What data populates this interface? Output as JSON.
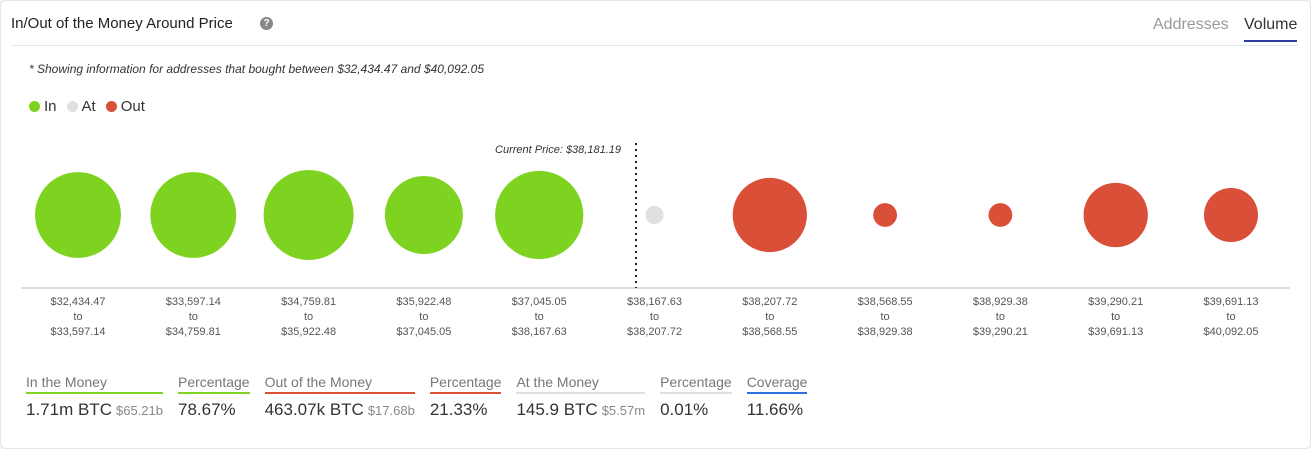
{
  "header": {
    "title": "In/Out of the Money Around Price",
    "help_icon": "question-circle-icon",
    "tabs": [
      {
        "label": "Addresses",
        "active": false
      },
      {
        "label": "Volume",
        "active": true
      }
    ]
  },
  "note": "* Showing information for addresses that bought between $32,434.47 and $40,092.05",
  "legend": [
    {
      "label": "In",
      "color": "#7ed321"
    },
    {
      "label": "At",
      "color": "#e0e0e2"
    },
    {
      "label": "Out",
      "color": "#d94f38"
    }
  ],
  "chart_data": {
    "type": "bubble",
    "current_price_label": "Current Price: $38,181.19",
    "categories": [
      {
        "from": "$32,434.47",
        "to": "$33,597.14",
        "status": "In",
        "relative_volume": 0.91
      },
      {
        "from": "$33,597.14",
        "to": "$34,759.81",
        "status": "In",
        "relative_volume": 0.91
      },
      {
        "from": "$34,759.81",
        "to": "$35,922.48",
        "status": "In",
        "relative_volume": 1.0
      },
      {
        "from": "$35,922.48",
        "to": "$37,045.05",
        "status": "In",
        "relative_volume": 0.75
      },
      {
        "from": "$37,045.05",
        "to": "$38,167.63",
        "status": "In",
        "relative_volume": 0.96
      },
      {
        "from": "$38,167.63",
        "to": "$38,207.72",
        "status": "At",
        "relative_volume": 0.04
      },
      {
        "from": "$38,207.72",
        "to": "$38,568.55",
        "status": "Out",
        "relative_volume": 0.68
      },
      {
        "from": "$38,568.55",
        "to": "$38,929.38",
        "status": "Out",
        "relative_volume": 0.07
      },
      {
        "from": "$38,929.38",
        "to": "$39,290.21",
        "status": "Out",
        "relative_volume": 0.07
      },
      {
        "from": "$39,290.21",
        "to": "$39,691.13",
        "status": "Out",
        "relative_volume": 0.51
      },
      {
        "from": "$39,691.13",
        "to": "$40,092.05",
        "status": "Out",
        "relative_volume": 0.36
      }
    ],
    "to_word": "to"
  },
  "stats": [
    {
      "label": "In the Money",
      "value": "1.71m BTC",
      "sub": "$65.21b",
      "color": "#7ed321"
    },
    {
      "label": "Percentage",
      "value": "78.67%",
      "color": "#7ed321"
    },
    {
      "label": "Out of the Money",
      "value": "463.07k BTC",
      "sub": "$17.68b",
      "color": "#d94f38"
    },
    {
      "label": "Percentage",
      "value": "21.33%",
      "color": "#d94f38"
    },
    {
      "label": "At the Money",
      "value": "145.9 BTC",
      "sub": "$5.57m",
      "color": "#e0e0e2"
    },
    {
      "label": "Percentage",
      "value": "0.01%",
      "color": "#e0e0e2"
    },
    {
      "label": "Coverage",
      "value": "11.66%",
      "color": "#2f6fe0"
    }
  ]
}
